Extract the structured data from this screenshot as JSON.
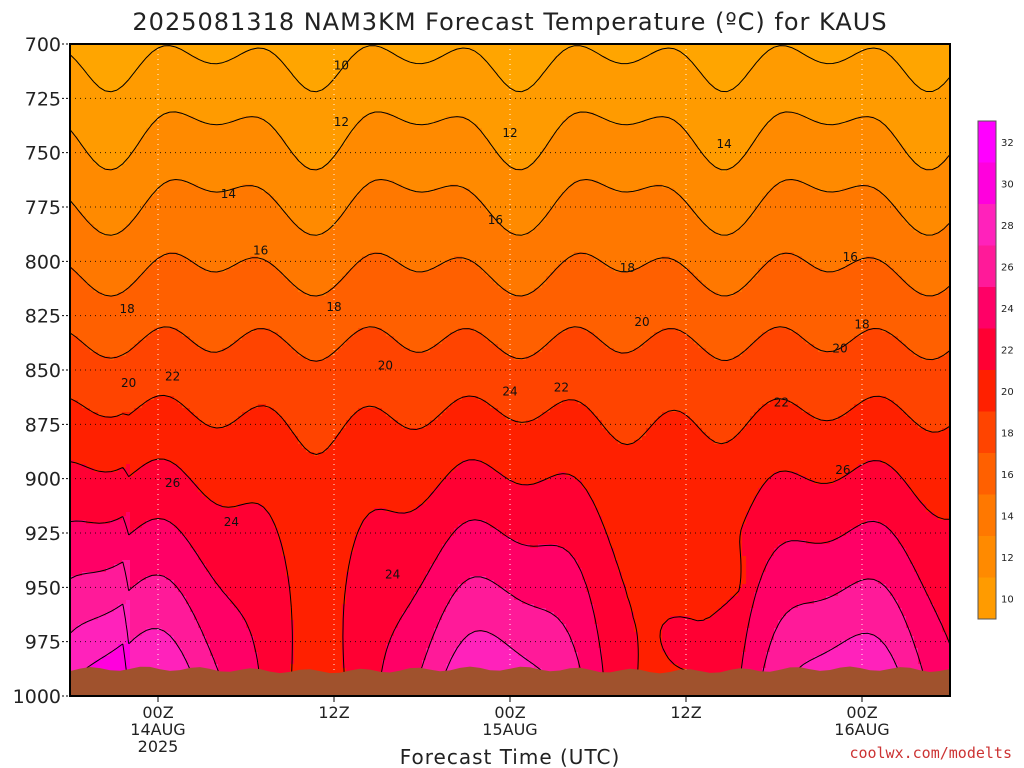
{
  "title": "2025081318 NAM3KM Forecast Temperature (ºC) for KAUS",
  "xlabel": "Forecast Time (UTC)",
  "credit": "coolwx.com/modelts",
  "chart_data": {
    "type": "heatmap",
    "title": "2025081318 NAM3KM Forecast Temperature (ºC) for KAUS",
    "xlabel": "Forecast Time (UTC)",
    "ylabel": "",
    "y_axis_ticks": [
      700,
      725,
      750,
      775,
      800,
      825,
      850,
      875,
      900,
      925,
      950,
      975,
      1000
    ],
    "y_axis_reversed": true,
    "ylim": [
      1000,
      700
    ],
    "xlim_hours": [
      -6,
      54
    ],
    "x_axis_ticks": [
      {
        "hour": 0,
        "lines": [
          "00Z",
          "14AUG",
          "2025"
        ]
      },
      {
        "hour": 12,
        "lines": [
          "12Z"
        ]
      },
      {
        "hour": 24,
        "lines": [
          "00Z",
          "15AUG"
        ]
      },
      {
        "hour": 36,
        "lines": [
          "12Z"
        ]
      },
      {
        "hour": 48,
        "lines": [
          "00Z",
          "16AUG"
        ]
      }
    ],
    "grid": true,
    "colorbar": {
      "placement": "right",
      "levels": [
        10,
        12,
        14,
        16,
        18,
        20,
        22,
        24,
        26,
        28,
        30,
        32
      ],
      "colors": [
        "#ff9b00",
        "#ff8a00",
        "#ff7800",
        "#ff6000",
        "#ff4400",
        "#ff2000",
        "#ff0033",
        "#ff0066",
        "#ff1a99",
        "#ff22bb",
        "#ff00dd",
        "#ff00ff"
      ]
    },
    "contour_labels": [
      {
        "value": "10",
        "hour": 12.5,
        "pressure": 710
      },
      {
        "value": "12",
        "hour": 12.5,
        "pressure": 736
      },
      {
        "value": "12",
        "hour": 24.0,
        "pressure": 741
      },
      {
        "value": "14",
        "hour": 4.8,
        "pressure": 769
      },
      {
        "value": "14",
        "hour": 38.6,
        "pressure": 746
      },
      {
        "value": "16",
        "hour": 7.0,
        "pressure": 795
      },
      {
        "value": "16",
        "hour": 23.0,
        "pressure": 781
      },
      {
        "value": "16",
        "hour": 47.2,
        "pressure": 798
      },
      {
        "value": "18",
        "hour": -2.1,
        "pressure": 822
      },
      {
        "value": "18",
        "hour": 12.0,
        "pressure": 821
      },
      {
        "value": "18",
        "hour": 32.0,
        "pressure": 803
      },
      {
        "value": "18",
        "hour": 48.0,
        "pressure": 829
      },
      {
        "value": "20",
        "hour": -2.0,
        "pressure": 856
      },
      {
        "value": "20",
        "hour": 15.5,
        "pressure": 848
      },
      {
        "value": "20",
        "hour": 33.0,
        "pressure": 828
      },
      {
        "value": "20",
        "hour": 46.5,
        "pressure": 840
      },
      {
        "value": "22",
        "hour": 1.0,
        "pressure": 853
      },
      {
        "value": "22",
        "hour": 27.5,
        "pressure": 858
      },
      {
        "value": "22",
        "hour": 42.5,
        "pressure": 865
      },
      {
        "value": "24",
        "hour": 24.0,
        "pressure": 860
      },
      {
        "value": "24",
        "hour": 5.0,
        "pressure": 920
      },
      {
        "value": "24",
        "hour": 16.0,
        "pressure": 944
      },
      {
        "value": "26",
        "hour": 1.0,
        "pressure": 902
      },
      {
        "value": "26",
        "hour": 46.7,
        "pressure": 896
      }
    ],
    "surface_pressure_approx": 988
  }
}
